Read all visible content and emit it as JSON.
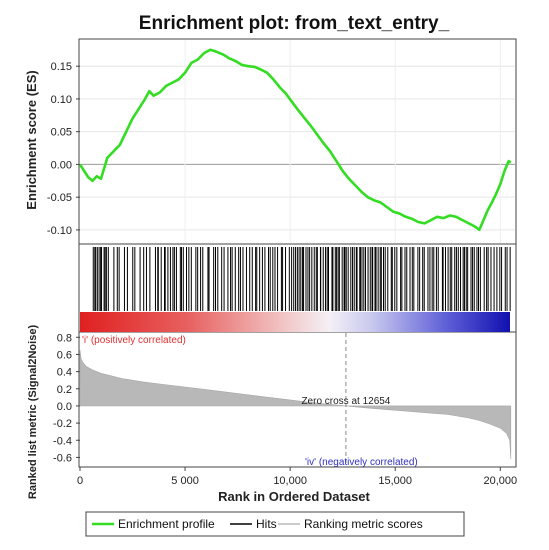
{
  "chart_data": {
    "type": "line",
    "title": "Enrichment plot: from_text_entry_",
    "xlabel": "Rank in Ordered Dataset",
    "x_ticks": [
      {
        "value": 0,
        "label": "0"
      },
      {
        "value": 5000,
        "label": "5 000"
      },
      {
        "value": 10000,
        "label": "10,000"
      },
      {
        "value": 15000,
        "label": "15,000"
      },
      {
        "value": 20000,
        "label": "20,000"
      }
    ],
    "xlim": [
      0,
      20700
    ],
    "es_panel": {
      "ylabel": "Enrichment score (ES)",
      "ylim": [
        -0.12,
        0.19
      ],
      "y_ticks": [
        {
          "value": 0.15,
          "label": "0.15"
        },
        {
          "value": 0.1,
          "label": "0.10"
        },
        {
          "value": 0.05,
          "label": "0.05"
        },
        {
          "value": 0.0,
          "label": "0.00"
        },
        {
          "value": -0.05,
          "label": "-0.05"
        },
        {
          "value": -0.1,
          "label": "-0.10"
        }
      ],
      "series": {
        "name": "Enrichment profile",
        "color": "#33dd22",
        "x": [
          0,
          200,
          400,
          600,
          800,
          1000,
          1300,
          1600,
          1900,
          2200,
          2500,
          2800,
          3100,
          3300,
          3500,
          3800,
          4100,
          4400,
          4700,
          5000,
          5300,
          5600,
          5900,
          6200,
          6500,
          6800,
          7100,
          7400,
          7700,
          8000,
          8300,
          8600,
          8900,
          9200,
          9500,
          9800,
          10100,
          10400,
          10700,
          11000,
          11300,
          11600,
          11900,
          12200,
          12500,
          12800,
          13100,
          13400,
          13700,
          14000,
          14300,
          14600,
          14900,
          15200,
          15500,
          15800,
          16100,
          16400,
          16700,
          17000,
          17300,
          17600,
          17900,
          18200,
          18500,
          18800,
          19000,
          19200,
          19400,
          19600,
          19800,
          20000,
          20200,
          20400,
          20500
        ],
        "values": [
          0.0,
          -0.01,
          -0.02,
          -0.025,
          -0.018,
          -0.022,
          0.01,
          0.02,
          0.03,
          0.05,
          0.07,
          0.085,
          0.1,
          0.112,
          0.105,
          0.11,
          0.12,
          0.125,
          0.13,
          0.14,
          0.155,
          0.16,
          0.17,
          0.175,
          0.172,
          0.168,
          0.162,
          0.158,
          0.152,
          0.15,
          0.149,
          0.145,
          0.14,
          0.13,
          0.118,
          0.108,
          0.095,
          0.082,
          0.07,
          0.058,
          0.045,
          0.032,
          0.02,
          0.005,
          -0.01,
          -0.022,
          -0.032,
          -0.042,
          -0.05,
          -0.055,
          -0.058,
          -0.065,
          -0.072,
          -0.075,
          -0.08,
          -0.083,
          -0.088,
          -0.09,
          -0.085,
          -0.08,
          -0.082,
          -0.078,
          -0.08,
          -0.085,
          -0.09,
          -0.095,
          -0.1,
          -0.085,
          -0.07,
          -0.058,
          -0.045,
          -0.03,
          -0.01,
          0.005,
          0.003
        ]
      }
    },
    "hits_panel": {
      "name": "Hits",
      "segments": [
        [
          600,
          1300,
          10
        ],
        [
          1300,
          3500,
          12
        ],
        [
          3500,
          5000,
          14
        ],
        [
          5000,
          7500,
          18
        ],
        [
          7500,
          10000,
          20
        ],
        [
          10000,
          12000,
          22
        ],
        [
          12000,
          14500,
          30
        ],
        [
          14500,
          17500,
          26
        ],
        [
          17500,
          19000,
          16
        ],
        [
          19000,
          20500,
          12
        ]
      ]
    },
    "ranked_panel": {
      "ylabel": "Ranked list metric (Signal2Noise)",
      "ylim": [
        -0.7,
        0.85
      ],
      "y_ticks": [
        {
          "value": 0.8,
          "label": "0.8"
        },
        {
          "value": 0.6,
          "label": "0.6"
        },
        {
          "value": 0.4,
          "label": "0.4"
        },
        {
          "value": 0.2,
          "label": "0.2"
        },
        {
          "value": 0.0,
          "label": "0.0"
        },
        {
          "value": -0.2,
          "label": "-0.2"
        },
        {
          "value": -0.4,
          "label": "-0.4"
        },
        {
          "value": -0.6,
          "label": "-0.6"
        }
      ],
      "series": {
        "name": "Ranking metric scores",
        "color": "#b8b8b8",
        "x": [
          0,
          50,
          150,
          300,
          600,
          1000,
          1500,
          2000,
          3000,
          4000,
          5000,
          6000,
          7000,
          8000,
          9000,
          10000,
          11000,
          12000,
          12654,
          13500,
          14500,
          15500,
          16500,
          17500,
          18500,
          19000,
          19500,
          20000,
          20300,
          20450,
          20500
        ],
        "values": [
          0.65,
          0.55,
          0.5,
          0.46,
          0.42,
          0.38,
          0.35,
          0.32,
          0.28,
          0.25,
          0.22,
          0.19,
          0.16,
          0.13,
          0.1,
          0.07,
          0.04,
          0.015,
          0.0,
          -0.02,
          -0.04,
          -0.06,
          -0.08,
          -0.1,
          -0.14,
          -0.17,
          -0.21,
          -0.26,
          -0.32,
          -0.4,
          -0.62
        ]
      },
      "zero_cross_label": "Zero cross at 12654",
      "zero_cross_x": 12654,
      "pos_label": "'i' (positively correlated)",
      "neg_label": "'iv' (negatively correlated)",
      "pos_color": "#e03030",
      "neg_color": "#3030c0"
    },
    "legend": {
      "placement": "bottom",
      "items": [
        {
          "label": "Enrichment profile",
          "color": "#33dd22",
          "style": "line"
        },
        {
          "label": "Hits",
          "color": "#000000",
          "style": "line"
        },
        {
          "label": "Ranking metric scores",
          "color": "#bbbbbb",
          "style": "line"
        }
      ]
    }
  }
}
